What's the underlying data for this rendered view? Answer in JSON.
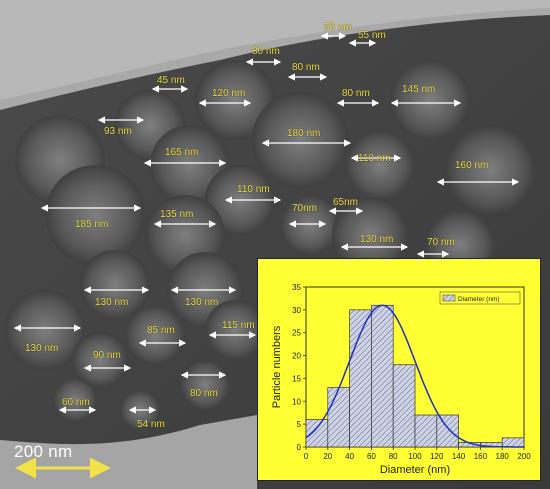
{
  "image": {
    "description_icon": "tem-micrograph-icon",
    "colors": {
      "background": "#6e6e6e",
      "label": "#f2e24a",
      "inset": "#ffff33",
      "curve": "#1f2fbf",
      "bars": "#9aa0b8"
    }
  },
  "measurements": [
    {
      "label": "50 nm"
    },
    {
      "label": "55 nm"
    },
    {
      "label": "80 nm"
    },
    {
      "label": "80 nm"
    },
    {
      "label": "45 nm"
    },
    {
      "label": "120 nm"
    },
    {
      "label": "80 nm"
    },
    {
      "label": "145 nm"
    },
    {
      "label": "93 nm"
    },
    {
      "label": "180 nm"
    },
    {
      "label": "165 nm"
    },
    {
      "label": "110 nm"
    },
    {
      "label": "160 nm"
    },
    {
      "label": "110 nm"
    },
    {
      "label": "65nm"
    },
    {
      "label": "185 nm"
    },
    {
      "label": "135 nm"
    },
    {
      "label": "70nm"
    },
    {
      "label": "130 nm"
    },
    {
      "label": "70 nm"
    },
    {
      "label": "130 nm"
    },
    {
      "label": "130 nm"
    },
    {
      "label": "130 nm"
    },
    {
      "label": "85 nm"
    },
    {
      "label": "115 nm"
    },
    {
      "label": "90 nm"
    },
    {
      "label": "80 nm"
    },
    {
      "label": "60 nm"
    },
    {
      "label": "54 nm"
    }
  ],
  "scale_bar": {
    "label": "200 nm"
  },
  "chart_data": {
    "type": "bar",
    "x": [
      0,
      20,
      40,
      60,
      80,
      100,
      120,
      140,
      160,
      180
    ],
    "bin_width": 20,
    "values": [
      6,
      13,
      30,
      31,
      18,
      7,
      7,
      1,
      1,
      2
    ],
    "xlabel": "Diameter (nm)",
    "ylabel": "Particle numbers",
    "xlim": [
      0,
      200
    ],
    "ylim": [
      0,
      35
    ],
    "xticks": [
      0,
      20,
      40,
      60,
      80,
      100,
      120,
      140,
      160,
      180,
      200
    ],
    "yticks": [
      0,
      5,
      10,
      15,
      20,
      25,
      30,
      35
    ],
    "legend": {
      "position": "top-right",
      "entries": [
        "Diameter (nm)"
      ]
    },
    "fit_curve": {
      "type": "gaussian",
      "mean": 70,
      "sigma": 30,
      "peak": 31
    }
  }
}
